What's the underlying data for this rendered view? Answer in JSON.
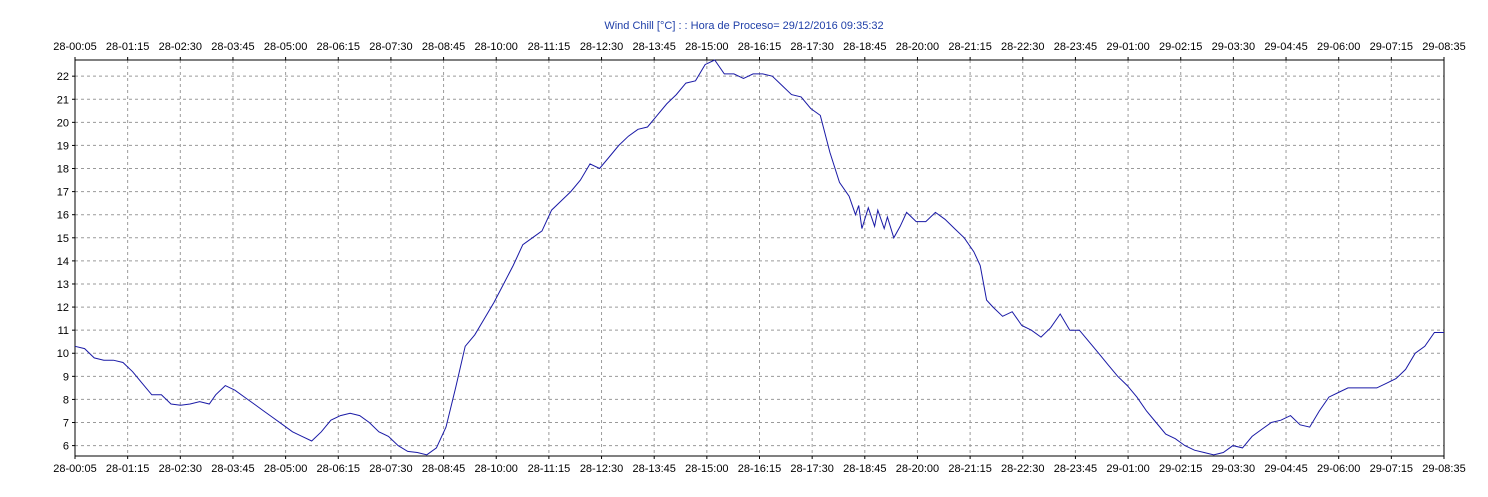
{
  "chart_data": {
    "type": "line",
    "title": "Wind Chill [°C] : : Hora de Proceso= 29/12/2016 09:35:32",
    "xlabel": "",
    "ylabel": "",
    "x_tick_labels": [
      "28-00:05",
      "28-01:15",
      "28-02:30",
      "28-03:45",
      "28-05:00",
      "28-06:15",
      "28-07:30",
      "28-08:45",
      "28-10:00",
      "28-11:15",
      "28-12:30",
      "28-13:45",
      "28-15:00",
      "28-16:15",
      "28-17:30",
      "28-18:45",
      "28-20:00",
      "28-21:15",
      "28-22:30",
      "28-23:45",
      "29-01:00",
      "29-02:15",
      "29-03:30",
      "29-04:45",
      "29-06:00",
      "29-07:15",
      "29-08:35"
    ],
    "y_ticks": [
      6,
      7,
      8,
      9,
      10,
      11,
      12,
      13,
      14,
      15,
      16,
      17,
      18,
      19,
      20,
      21,
      22
    ],
    "ylim": [
      5.55,
      22.7
    ],
    "grid": true,
    "line_color": "#1a1aa6",
    "series": [
      {
        "values": [
          [
            "28-00:05",
            10.3
          ],
          [
            "28-00:20",
            10.2
          ],
          [
            "28-00:35",
            9.8
          ],
          [
            "28-00:50",
            9.7
          ],
          [
            "28-01:05",
            9.7
          ],
          [
            "28-01:20",
            9.6
          ],
          [
            "28-01:35",
            9.2
          ],
          [
            "28-01:50",
            8.7
          ],
          [
            "28-02:05",
            8.2
          ],
          [
            "28-02:20",
            8.2
          ],
          [
            "28-02:35",
            7.8
          ],
          [
            "28-02:50",
            7.75
          ],
          [
            "28-03:05",
            7.8
          ],
          [
            "28-03:20",
            7.9
          ],
          [
            "28-03:35",
            7.8
          ],
          [
            "28-03:45",
            8.2
          ],
          [
            "28-04:00",
            8.6
          ],
          [
            "28-04:15",
            8.4
          ],
          [
            "28-04:30",
            8.1
          ],
          [
            "28-04:45",
            7.8
          ],
          [
            "28-05:00",
            7.5
          ],
          [
            "28-05:15",
            7.2
          ],
          [
            "28-05:30",
            6.9
          ],
          [
            "28-05:45",
            6.6
          ],
          [
            "28-06:00",
            6.4
          ],
          [
            "28-06:15",
            6.2
          ],
          [
            "28-06:30",
            6.6
          ],
          [
            "28-06:45",
            7.1
          ],
          [
            "28-07:00",
            7.3
          ],
          [
            "28-07:15",
            7.4
          ],
          [
            "28-07:30",
            7.3
          ],
          [
            "28-07:45",
            7.0
          ],
          [
            "28-08:00",
            6.6
          ],
          [
            "28-08:15",
            6.4
          ],
          [
            "28-08:30",
            6.0
          ],
          [
            "28-08:45",
            5.75
          ],
          [
            "28-09:00",
            5.7
          ],
          [
            "28-09:15",
            5.6
          ],
          [
            "28-09:30",
            5.9
          ],
          [
            "28-09:45",
            6.8
          ],
          [
            "28-10:00",
            8.5
          ],
          [
            "28-10:15",
            10.3
          ],
          [
            "28-10:30",
            10.8
          ],
          [
            "28-10:45",
            11.5
          ],
          [
            "28-11:00",
            12.2
          ],
          [
            "28-11:15",
            13.0
          ],
          [
            "28-11:30",
            13.8
          ],
          [
            "28-11:45",
            14.7
          ],
          [
            "28-12:00",
            15.0
          ],
          [
            "28-12:15",
            15.3
          ],
          [
            "28-12:30",
            16.2
          ],
          [
            "28-12:45",
            16.6
          ],
          [
            "28-13:00",
            17.0
          ],
          [
            "28-13:15",
            17.5
          ],
          [
            "28-13:30",
            18.2
          ],
          [
            "28-13:45",
            18.0
          ],
          [
            "28-14:00",
            18.5
          ],
          [
            "28-14:15",
            19.0
          ],
          [
            "28-14:30",
            19.4
          ],
          [
            "28-14:45",
            19.7
          ],
          [
            "28-15:00",
            19.8
          ],
          [
            "28-15:15",
            20.3
          ],
          [
            "28-15:30",
            20.8
          ],
          [
            "28-15:45",
            21.2
          ],
          [
            "28-16:00",
            21.7
          ],
          [
            "28-16:15",
            21.8
          ],
          [
            "28-16:30",
            22.5
          ],
          [
            "28-16:45",
            22.7
          ],
          [
            "28-17:00",
            22.1
          ],
          [
            "28-17:15",
            22.1
          ],
          [
            "28-17:30",
            21.9
          ],
          [
            "28-17:45",
            22.1
          ],
          [
            "28-18:00",
            22.1
          ],
          [
            "28-18:15",
            22.0
          ],
          [
            "28-18:30",
            21.6
          ],
          [
            "28-18:45",
            21.2
          ],
          [
            "28-19:00",
            21.1
          ],
          [
            "28-19:15",
            20.6
          ],
          [
            "28-19:30",
            20.3
          ],
          [
            "28-19:45",
            18.7
          ],
          [
            "28-20:00",
            17.4
          ],
          [
            "28-20:15",
            16.8
          ],
          [
            "28-20:25",
            16.0
          ],
          [
            "28-20:30",
            16.4
          ],
          [
            "28-20:35",
            15.4
          ],
          [
            "28-20:45",
            16.3
          ],
          [
            "28-20:55",
            15.5
          ],
          [
            "28-21:00",
            16.2
          ],
          [
            "28-21:10",
            15.4
          ],
          [
            "28-21:15",
            15.9
          ],
          [
            "28-21:25",
            15.0
          ],
          [
            "28-21:35",
            15.5
          ],
          [
            "28-21:45",
            16.1
          ],
          [
            "28-22:00",
            15.7
          ],
          [
            "28-22:15",
            15.7
          ],
          [
            "28-22:30",
            16.1
          ],
          [
            "28-22:45",
            15.8
          ],
          [
            "28-23:00",
            15.4
          ],
          [
            "28-23:15",
            15.0
          ],
          [
            "28-23:30",
            14.4
          ],
          [
            "28-23:40",
            13.8
          ],
          [
            "28-23:50",
            12.3
          ],
          [
            "29-00:00",
            12.0
          ],
          [
            "29-00:15",
            11.6
          ],
          [
            "29-00:30",
            11.8
          ],
          [
            "29-00:45",
            11.2
          ],
          [
            "29-01:00",
            11.0
          ],
          [
            "29-01:15",
            10.7
          ],
          [
            "29-01:30",
            11.1
          ],
          [
            "29-01:45",
            11.7
          ],
          [
            "29-02:00",
            11.0
          ],
          [
            "29-02:15",
            11.0
          ],
          [
            "29-02:30",
            10.5
          ],
          [
            "29-02:45",
            10.0
          ],
          [
            "29-03:00",
            9.5
          ],
          [
            "29-03:15",
            9.0
          ],
          [
            "29-03:30",
            8.6
          ],
          [
            "29-03:45",
            8.1
          ],
          [
            "29-04:00",
            7.5
          ],
          [
            "29-04:15",
            7.0
          ],
          [
            "29-04:30",
            6.5
          ],
          [
            "29-04:45",
            6.3
          ],
          [
            "29-05:00",
            6.0
          ],
          [
            "29-05:15",
            5.8
          ],
          [
            "29-05:30",
            5.7
          ],
          [
            "29-05:45",
            5.6
          ],
          [
            "29-06:00",
            5.7
          ],
          [
            "29-06:15",
            6.0
          ],
          [
            "29-06:30",
            5.9
          ],
          [
            "29-06:45",
            6.4
          ],
          [
            "29-07:00",
            6.7
          ],
          [
            "29-07:15",
            7.0
          ],
          [
            "29-07:30",
            7.1
          ],
          [
            "29-07:45",
            7.3
          ],
          [
            "29-08:00",
            6.9
          ],
          [
            "29-08:15",
            6.8
          ],
          [
            "29-08:30",
            7.5
          ],
          [
            "29-08:45",
            8.1
          ],
          [
            "29-09:00",
            8.3
          ],
          [
            "29-09:15",
            8.5
          ],
          [
            "29-09:30",
            8.5
          ],
          [
            "29-09:45",
            8.5
          ],
          [
            "29-10:00",
            8.5
          ],
          [
            "29-10:15",
            8.7
          ],
          [
            "29-10:30",
            8.9
          ],
          [
            "29-10:45",
            9.3
          ],
          [
            "29-11:00",
            10.0
          ],
          [
            "29-11:15",
            10.3
          ],
          [
            "29-11:30",
            10.9
          ],
          [
            "29-11:45",
            10.9
          ]
        ]
      }
    ]
  }
}
